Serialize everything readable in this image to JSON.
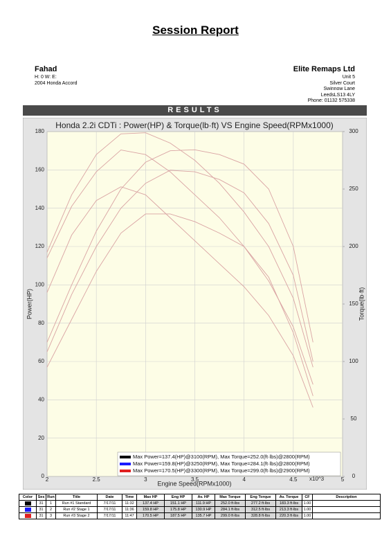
{
  "header": {
    "title": "Session Report",
    "section": "RESULTS"
  },
  "customer": {
    "name": "Fahad",
    "lines": [
      "H: 0   W:      E:",
      "2004 Honda  Accord"
    ]
  },
  "company": {
    "name": "Elite Remaps Ltd",
    "lines": [
      "Unit 5",
      "Silver Court",
      "Swinnow Lane",
      "LeedsLS13 4LY",
      "Phone: 01132 575338"
    ]
  },
  "chart_data": {
    "type": "line",
    "title": "Honda 2.2i CDTi : Power(HP) & Torque(lb·ft) VS Engine Speed(RPMx1000)",
    "xlabel": "Engine Speed(RPMx1000)",
    "x_multiplier": "x10^3",
    "ylabel": "Power(HP)",
    "y2label": "Torque(lb·ft)",
    "x": [
      2,
      2.25,
      2.5,
      2.75,
      3,
      3.25,
      3.5,
      3.75,
      4,
      4.25,
      4.5,
      4.7
    ],
    "xlim": [
      2,
      5
    ],
    "xticks": [
      2,
      2.5,
      3,
      3.5,
      4,
      4.5,
      5
    ],
    "ylim": [
      0,
      180
    ],
    "yticks": [
      0,
      20,
      40,
      60,
      80,
      100,
      120,
      140,
      160,
      180
    ],
    "y2lim": [
      0,
      300
    ],
    "y2ticks": [
      0,
      50,
      100,
      150,
      200,
      250,
      300
    ],
    "grid": true,
    "line_color": "#d9a3a3",
    "series": [
      {
        "name": "Max Power=137.4(HP)@3100(RPM), Max Torque=252.0(ft·lbs)@2800(RPM)",
        "color": "#000000",
        "power": [
          57,
          82,
          107,
          127,
          137,
          137,
          133,
          127,
          120,
          104,
          75,
          42
        ],
        "torque": [
          160,
          210,
          240,
          252,
          245,
          225,
          205,
          185,
          165,
          140,
          105,
          60
        ]
      },
      {
        "name": "Max Power=159.8(HP)@3250(RPM), Max Torque=284.1(ft·lbs)@2800(RPM)",
        "color": "#1a1aff",
        "power": [
          65,
          95,
          120,
          140,
          153,
          159.8,
          159,
          155,
          148,
          132,
          105,
          60
        ],
        "torque": [
          190,
          235,
          265,
          284,
          280,
          265,
          245,
          225,
          200,
          170,
          130,
          80
        ]
      },
      {
        "name": "Max Power=170.5(HP)@3300(RPM), Max Torque=299.0(ft·lbs)@2900(RPM)",
        "color": "#e02020",
        "power": [
          70,
          100,
          128,
          150,
          164,
          170,
          170.5,
          168,
          163,
          150,
          120,
          70
        ],
        "torque": [
          195,
          245,
          280,
          298,
          299,
          290,
          275,
          255,
          230,
          200,
          155,
          95
        ]
      }
    ]
  },
  "table": {
    "columns": [
      "Color",
      "Ses",
      "Run",
      "Title",
      "Date",
      "Time",
      "Max HP",
      "Eng HP",
      "Av. HP",
      "Max Torque",
      "Eng Torque",
      "Av. Torque",
      "CF",
      "Description"
    ],
    "rows": [
      [
        "31",
        "1",
        "Run #1 Standard",
        "7/17/11",
        "11:32",
        "137.4 HP",
        "151.1 HP",
        "111.9 HP",
        "252.0 ft·lbs",
        "277.2 ft·lbs",
        "183.3 ft·lbs",
        "1.00"
      ],
      [
        "31",
        "2",
        "Run #2 Stage 1",
        "7/17/11",
        "11:36",
        "159.8 HP",
        "175.8 HP",
        "130.9 HP",
        "284.1 ft·lbs",
        "312.5 ft·lbs",
        "213.3 ft·lbs",
        "1.00"
      ],
      [
        "31",
        "3",
        "Run #3 Stage 2",
        "7/17/11",
        "11:47",
        "170.5 HP",
        "187.5 HP",
        "135.7 HP",
        "299.0 ft·lbs",
        "328.8 ft·lbs",
        "220.3 ft·lbs",
        "1.00"
      ]
    ]
  }
}
